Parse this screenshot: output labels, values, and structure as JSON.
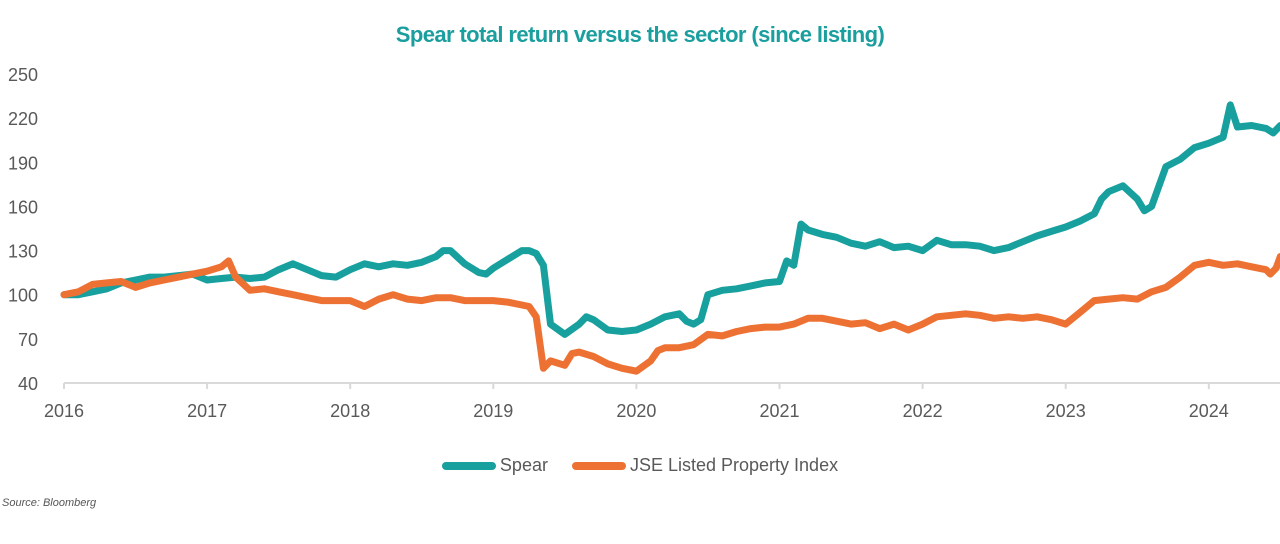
{
  "chart_data": {
    "type": "line",
    "title": "Spear total return versus the sector (since listing)",
    "xlabel": "",
    "ylabel": "",
    "xlim": [
      2016.0,
      2024.5
    ],
    "ylim": [
      40,
      250
    ],
    "yticks": [
      40,
      70,
      100,
      130,
      160,
      190,
      220,
      250
    ],
    "xticks": [
      2016,
      2017,
      2018,
      2019,
      2020,
      2021,
      2022,
      2023,
      2024
    ],
    "xtick_labels": [
      "2016",
      "2017",
      "2018",
      "2019",
      "2020",
      "2021",
      "2022",
      "2023",
      "2024"
    ],
    "grid": false,
    "legend_position": "bottom",
    "series": [
      {
        "name": "Spear",
        "color": "#17a09e",
        "x": [
          2016.0,
          2016.1,
          2016.2,
          2016.3,
          2016.4,
          2016.5,
          2016.6,
          2016.7,
          2016.8,
          2016.9,
          2017.0,
          2017.1,
          2017.2,
          2017.3,
          2017.4,
          2017.5,
          2017.6,
          2017.7,
          2017.8,
          2017.9,
          2018.0,
          2018.1,
          2018.2,
          2018.3,
          2018.4,
          2018.5,
          2018.6,
          2018.65,
          2018.7,
          2018.8,
          2018.9,
          2018.95,
          2019.0,
          2019.1,
          2019.2,
          2019.25,
          2019.3,
          2019.35,
          2019.4,
          2019.5,
          2019.6,
          2019.65,
          2019.7,
          2019.8,
          2019.9,
          2020.0,
          2020.1,
          2020.2,
          2020.3,
          2020.35,
          2020.4,
          2020.45,
          2020.5,
          2020.6,
          2020.7,
          2020.8,
          2020.9,
          2021.0,
          2021.05,
          2021.1,
          2021.15,
          2021.2,
          2021.3,
          2021.4,
          2021.5,
          2021.6,
          2021.7,
          2021.8,
          2021.9,
          2022.0,
          2022.1,
          2022.2,
          2022.3,
          2022.4,
          2022.5,
          2022.6,
          2022.7,
          2022.8,
          2022.9,
          2023.0,
          2023.1,
          2023.2,
          2023.25,
          2023.3,
          2023.4,
          2023.5,
          2023.55,
          2023.6,
          2023.7,
          2023.8,
          2023.9,
          2024.0,
          2024.05,
          2024.1,
          2024.15,
          2024.2,
          2024.3,
          2024.4,
          2024.45,
          2024.5
        ],
        "values": [
          100,
          100,
          102,
          104,
          108,
          110,
          112,
          112,
          113,
          114,
          110,
          111,
          112,
          111,
          112,
          117,
          121,
          117,
          113,
          112,
          117,
          121,
          119,
          121,
          120,
          122,
          126,
          130,
          130,
          121,
          115,
          114,
          118,
          124,
          130,
          130,
          128,
          120,
          80,
          73,
          80,
          85,
          83,
          76,
          75,
          76,
          80,
          85,
          87,
          82,
          80,
          83,
          100,
          103,
          104,
          106,
          108,
          109,
          123,
          120,
          148,
          144,
          141,
          139,
          135,
          133,
          136,
          132,
          133,
          130,
          137,
          134,
          134,
          133,
          130,
          132,
          136,
          140,
          143,
          146,
          150,
          155,
          165,
          170,
          174,
          165,
          157,
          160,
          187,
          192,
          200,
          203,
          205,
          207,
          229,
          214,
          215,
          213,
          210,
          215
        ]
      },
      {
        "name": "JSE Listed Property Index",
        "color": "#ed7133",
        "x": [
          2016.0,
          2016.1,
          2016.2,
          2016.3,
          2016.4,
          2016.5,
          2016.6,
          2016.7,
          2016.8,
          2016.9,
          2017.0,
          2017.1,
          2017.15,
          2017.2,
          2017.3,
          2017.4,
          2017.5,
          2017.6,
          2017.7,
          2017.8,
          2017.9,
          2018.0,
          2018.1,
          2018.2,
          2018.3,
          2018.4,
          2018.5,
          2018.6,
          2018.7,
          2018.8,
          2018.9,
          2019.0,
          2019.1,
          2019.2,
          2019.25,
          2019.3,
          2019.35,
          2019.4,
          2019.5,
          2019.55,
          2019.6,
          2019.7,
          2019.8,
          2019.9,
          2020.0,
          2020.1,
          2020.15,
          2020.2,
          2020.3,
          2020.4,
          2020.5,
          2020.6,
          2020.7,
          2020.8,
          2020.9,
          2021.0,
          2021.1,
          2021.2,
          2021.3,
          2021.4,
          2021.5,
          2021.6,
          2021.7,
          2021.8,
          2021.9,
          2022.0,
          2022.1,
          2022.2,
          2022.3,
          2022.4,
          2022.5,
          2022.6,
          2022.7,
          2022.8,
          2022.9,
          2023.0,
          2023.1,
          2023.2,
          2023.3,
          2023.4,
          2023.5,
          2023.6,
          2023.7,
          2023.8,
          2023.9,
          2024.0,
          2024.1,
          2024.2,
          2024.3,
          2024.4,
          2024.43,
          2024.47,
          2024.5
        ],
        "values": [
          100,
          102,
          107,
          108,
          109,
          105,
          108,
          110,
          112,
          114,
          116,
          119,
          123,
          112,
          103,
          104,
          102,
          100,
          98,
          96,
          96,
          96,
          92,
          97,
          100,
          97,
          96,
          98,
          98,
          96,
          96,
          96,
          95,
          93,
          92,
          85,
          50,
          55,
          52,
          60,
          61,
          58,
          53,
          50,
          48,
          55,
          62,
          64,
          64,
          66,
          73,
          72,
          75,
          77,
          78,
          78,
          80,
          84,
          84,
          82,
          80,
          81,
          77,
          80,
          76,
          80,
          85,
          86,
          87,
          86,
          84,
          85,
          84,
          85,
          83,
          80,
          88,
          96,
          97,
          98,
          97,
          102,
          105,
          112,
          120,
          122,
          120,
          121,
          119,
          117,
          114,
          118,
          126
        ]
      }
    ]
  },
  "legend": {
    "items": [
      {
        "label": "Spear",
        "color": "#17a09e"
      },
      {
        "label": "JSE Listed Property Index",
        "color": "#ed7133"
      }
    ]
  },
  "footer": {
    "source": "Source: Bloomberg"
  }
}
